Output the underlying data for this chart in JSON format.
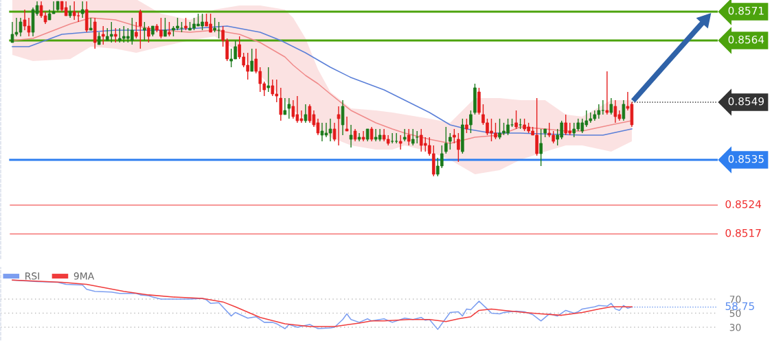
{
  "chart_data": [
    {
      "type": "candlestick",
      "categories": [
        null,
        null,
        null,
        null,
        null,
        null,
        null,
        null,
        null,
        null,
        null,
        null,
        null,
        null,
        null,
        null,
        null,
        null,
        null,
        null,
        null,
        null,
        null,
        null,
        null,
        null,
        null,
        null,
        null,
        null,
        null,
        null,
        null,
        null,
        null,
        null,
        null,
        null,
        null,
        null,
        null,
        null,
        null,
        null,
        null,
        null,
        null,
        null,
        null,
        null,
        null,
        null,
        null,
        null,
        null,
        null,
        null,
        null,
        null,
        null,
        null,
        null,
        null,
        null,
        null,
        null,
        null,
        null,
        null,
        null,
        null,
        null,
        null,
        null,
        null,
        null,
        null,
        null,
        null,
        null,
        null,
        null,
        null,
        null,
        null,
        null,
        null,
        null,
        null,
        null,
        null,
        null,
        null,
        null,
        null,
        null,
        null,
        null,
        null,
        null,
        null,
        null,
        null,
        null,
        null,
        null,
        null,
        null,
        null,
        null,
        null,
        null,
        null,
        null,
        null,
        null,
        null,
        null,
        null,
        null,
        null,
        null,
        null,
        null,
        null,
        null,
        null,
        null,
        null,
        null,
        null,
        null,
        null,
        null,
        null,
        null,
        null,
        null,
        null,
        null,
        null,
        null,
        null,
        null,
        null,
        null,
        null,
        null,
        null,
        null,
        null
      ],
      "ohlc": [
        [
          0.85635,
          0.85685,
          0.85635,
          0.85655
        ],
        [
          0.85655,
          0.85695,
          0.8565,
          0.8566
        ],
        [
          0.8566,
          0.85695,
          0.8565,
          0.85685
        ],
        [
          0.8569,
          0.85715,
          0.85665,
          0.85675
        ],
        [
          0.85675,
          0.85695,
          0.8565,
          0.8566
        ],
        [
          0.8566,
          0.8572,
          0.8565,
          0.85715
        ],
        [
          0.85705,
          0.85735,
          0.857,
          0.85725
        ],
        [
          0.85725,
          0.85735,
          0.85695,
          0.857
        ],
        [
          0.857,
          0.8571,
          0.8568,
          0.85685
        ],
        [
          0.8569,
          0.85715,
          0.8569,
          0.85705
        ],
        [
          0.85705,
          0.85735,
          0.85705,
          0.8571
        ],
        [
          0.85715,
          0.85735,
          0.8571,
          0.85735
        ],
        [
          0.85735,
          0.85735,
          0.8571,
          0.85715
        ],
        [
          0.8572,
          0.85735,
          0.857,
          0.857
        ],
        [
          0.857,
          0.85725,
          0.85695,
          0.8571
        ],
        [
          0.8571,
          0.85735,
          0.8569,
          0.857
        ],
        [
          0.857,
          0.8571,
          0.85685,
          0.857
        ],
        [
          0.85705,
          0.85735,
          0.85695,
          0.85715
        ],
        [
          0.85715,
          0.85735,
          0.8566,
          0.85665
        ],
        [
          0.85665,
          0.85695,
          0.85665,
          0.8567
        ],
        [
          0.85685,
          0.85695,
          0.8562,
          0.85635
        ],
        [
          0.8563,
          0.8566,
          0.8563,
          0.8565
        ],
        [
          0.85655,
          0.85675,
          0.8563,
          0.8565
        ],
        [
          0.8564,
          0.8567,
          0.8564,
          0.8565
        ],
        [
          0.8565,
          0.85685,
          0.85635,
          0.85655
        ],
        [
          0.85655,
          0.8567,
          0.85635,
          0.8565
        ],
        [
          0.8564,
          0.8567,
          0.85635,
          0.85645
        ],
        [
          0.85645,
          0.85675,
          0.85635,
          0.8565
        ],
        [
          0.85645,
          0.8567,
          0.85635,
          0.8565
        ],
        [
          0.8564,
          0.85695,
          0.8563,
          0.85665
        ],
        [
          0.8566,
          0.85685,
          0.85645,
          0.8565
        ],
        [
          0.8571,
          0.85715,
          0.8562,
          0.85675
        ],
        [
          0.85665,
          0.85685,
          0.8564,
          0.8567
        ],
        [
          0.8567,
          0.85675,
          0.85635,
          0.8565
        ],
        [
          0.85655,
          0.85675,
          0.8565,
          0.85675
        ],
        [
          0.85675,
          0.8568,
          0.8566,
          0.85665
        ],
        [
          0.85665,
          0.85695,
          0.85645,
          0.8565
        ],
        [
          0.8565,
          0.85695,
          0.8565,
          0.85665
        ],
        [
          0.8566,
          0.85685,
          0.8565,
          0.85655
        ],
        [
          0.85665,
          0.85675,
          0.8565,
          0.8567
        ],
        [
          0.8567,
          0.85695,
          0.85665,
          0.85675
        ],
        [
          0.8567,
          0.85685,
          0.8566,
          0.8567
        ],
        [
          0.85675,
          0.85695,
          0.85665,
          0.8567
        ],
        [
          0.85665,
          0.85685,
          0.85665,
          0.8567
        ],
        [
          0.8567,
          0.85695,
          0.85665,
          0.8568
        ],
        [
          0.85675,
          0.85705,
          0.85675,
          0.8568
        ],
        [
          0.85675,
          0.85705,
          0.85665,
          0.85685
        ],
        [
          0.85685,
          0.85705,
          0.85675,
          0.85675
        ],
        [
          0.8568,
          0.85705,
          0.8566,
          0.8566
        ],
        [
          0.85665,
          0.85695,
          0.8566,
          0.8567
        ],
        [
          0.85665,
          0.85685,
          0.85645,
          0.85665
        ],
        [
          0.85665,
          0.85675,
          0.85625,
          0.8564
        ],
        [
          0.8564,
          0.85645,
          0.8559,
          0.85595
        ],
        [
          0.8559,
          0.8562,
          0.85575,
          0.85595
        ],
        [
          0.85595,
          0.8564,
          0.85595,
          0.85625
        ],
        [
          0.8563,
          0.8565,
          0.85595,
          0.856
        ],
        [
          0.856,
          0.8561,
          0.85575,
          0.8558
        ],
        [
          0.8558,
          0.8561,
          0.85545,
          0.85565
        ],
        [
          0.85565,
          0.8562,
          0.85565,
          0.8559
        ],
        [
          0.85595,
          0.8562,
          0.8556,
          0.85565
        ],
        [
          0.85565,
          0.85575,
          0.85515,
          0.85535
        ],
        [
          0.85535,
          0.8554,
          0.85505,
          0.8552
        ],
        [
          0.85525,
          0.85575,
          0.85515,
          0.8553
        ],
        [
          0.8553,
          0.85545,
          0.85505,
          0.8551
        ],
        [
          0.8551,
          0.85545,
          0.8549,
          0.85505
        ],
        [
          0.855,
          0.85525,
          0.85445,
          0.8546
        ],
        [
          0.8546,
          0.855,
          0.8546,
          0.8547
        ],
        [
          0.85475,
          0.855,
          0.8545,
          0.85485
        ],
        [
          0.8548,
          0.85495,
          0.8545,
          0.85455
        ],
        [
          0.8546,
          0.85505,
          0.8544,
          0.85445
        ],
        [
          0.8545,
          0.8547,
          0.8544,
          0.85445
        ],
        [
          0.85445,
          0.85485,
          0.8544,
          0.8546
        ],
        [
          0.8548,
          0.85485,
          0.8544,
          0.85445
        ],
        [
          0.8546,
          0.8547,
          0.8543,
          0.85435
        ],
        [
          0.8544,
          0.8545,
          0.8541,
          0.85415
        ],
        [
          0.8541,
          0.8544,
          0.85395,
          0.8542
        ],
        [
          0.8541,
          0.8544,
          0.85405,
          0.85415
        ],
        [
          0.85415,
          0.8545,
          0.85395,
          0.85425
        ],
        [
          0.85425,
          0.8544,
          0.85395,
          0.854
        ],
        [
          0.8546,
          0.8548,
          0.85385,
          0.8545
        ],
        [
          0.85435,
          0.85495,
          0.8541,
          0.8548
        ],
        [
          0.85425,
          0.85455,
          0.8542,
          0.8542
        ],
        [
          0.854,
          0.85435,
          0.8538,
          0.8541
        ],
        [
          0.8542,
          0.85425,
          0.85395,
          0.854
        ],
        [
          0.854,
          0.85415,
          0.85395,
          0.85405
        ],
        [
          0.85405,
          0.8542,
          0.85395,
          0.854
        ],
        [
          0.854,
          0.85425,
          0.85395,
          0.85425
        ],
        [
          0.85425,
          0.8543,
          0.85395,
          0.854
        ],
        [
          0.854,
          0.85425,
          0.85395,
          0.85405
        ],
        [
          0.854,
          0.85425,
          0.85395,
          0.8541
        ],
        [
          0.8541,
          0.85425,
          0.85395,
          0.854
        ],
        [
          0.854,
          0.8541,
          0.85385,
          0.8539
        ],
        [
          0.85395,
          0.85415,
          0.8539,
          0.85395
        ],
        [
          0.85395,
          0.85415,
          0.8539,
          0.85395
        ],
        [
          0.85395,
          0.8541,
          0.85375,
          0.8539
        ],
        [
          0.854,
          0.85425,
          0.85395,
          0.85405
        ],
        [
          0.8541,
          0.85425,
          0.85385,
          0.85395
        ],
        [
          0.8539,
          0.85425,
          0.85385,
          0.854
        ],
        [
          0.85405,
          0.8542,
          0.8539,
          0.85405
        ],
        [
          0.8541,
          0.85425,
          0.8537,
          0.85385
        ],
        [
          0.8539,
          0.85405,
          0.8537,
          0.85385
        ],
        [
          0.85385,
          0.85405,
          0.8536,
          0.85365
        ],
        [
          0.85365,
          0.85385,
          0.8531,
          0.85315
        ],
        [
          0.85315,
          0.85355,
          0.8531,
          0.85335
        ],
        [
          0.85335,
          0.85385,
          0.8533,
          0.85365
        ],
        [
          0.8537,
          0.8543,
          0.85365,
          0.8539
        ],
        [
          0.85395,
          0.85415,
          0.85375,
          0.85405
        ],
        [
          0.8541,
          0.85425,
          0.8539,
          0.85405
        ],
        [
          0.854,
          0.85415,
          0.85345,
          0.85375
        ],
        [
          0.8537,
          0.8545,
          0.85365,
          0.85435
        ],
        [
          0.85435,
          0.8545,
          0.85415,
          0.85425
        ],
        [
          0.85435,
          0.8547,
          0.85415,
          0.8546
        ],
        [
          0.85465,
          0.85535,
          0.8546,
          0.85525
        ],
        [
          0.85515,
          0.85525,
          0.8546,
          0.85465
        ],
        [
          0.8546,
          0.85485,
          0.85435,
          0.8544
        ],
        [
          0.8544,
          0.8545,
          0.8541,
          0.85415
        ],
        [
          0.8542,
          0.8545,
          0.85395,
          0.85415
        ],
        [
          0.85415,
          0.8544,
          0.854,
          0.85405
        ],
        [
          0.85405,
          0.8545,
          0.854,
          0.85415
        ],
        [
          0.85415,
          0.8544,
          0.8541,
          0.8542
        ],
        [
          0.85415,
          0.8545,
          0.8541,
          0.85435
        ],
        [
          0.85435,
          0.8545,
          0.8543,
          0.85435
        ],
        [
          0.8544,
          0.8547,
          0.85425,
          0.8543
        ],
        [
          0.85435,
          0.8545,
          0.85425,
          0.85435
        ],
        [
          0.85435,
          0.8545,
          0.8542,
          0.85425
        ],
        [
          0.8543,
          0.8544,
          0.85415,
          0.8542
        ],
        [
          0.8542,
          0.8543,
          0.8541,
          0.8541
        ],
        [
          0.8541,
          0.855,
          0.8536,
          0.85365
        ],
        [
          0.85365,
          0.85425,
          0.85335,
          0.8539
        ],
        [
          0.85415,
          0.85425,
          0.85405,
          0.85425
        ],
        [
          0.85415,
          0.8544,
          0.85405,
          0.8541
        ],
        [
          0.8541,
          0.8542,
          0.8539,
          0.85395
        ],
        [
          0.854,
          0.85425,
          0.85385,
          0.8541
        ],
        [
          0.85405,
          0.85445,
          0.854,
          0.8544
        ],
        [
          0.8544,
          0.8546,
          0.8541,
          0.85415
        ],
        [
          0.8542,
          0.8544,
          0.8541,
          0.85415
        ],
        [
          0.85415,
          0.8544,
          0.85405,
          0.85425
        ],
        [
          0.85425,
          0.8545,
          0.8542,
          0.8544
        ],
        [
          0.8542,
          0.8545,
          0.85415,
          0.8544
        ],
        [
          0.85435,
          0.8547,
          0.8543,
          0.85445
        ],
        [
          0.85445,
          0.85465,
          0.8544,
          0.8545
        ],
        [
          0.8545,
          0.8547,
          0.85445,
          0.8546
        ],
        [
          0.8546,
          0.85485,
          0.8545,
          0.8547
        ],
        [
          0.8547,
          0.85495,
          0.8546,
          0.8547
        ],
        [
          0.8547,
          0.85565,
          0.8546,
          0.85465
        ],
        [
          0.85465,
          0.855,
          0.8546,
          0.85485
        ],
        [
          0.8548,
          0.85495,
          0.8544,
          0.85455
        ],
        [
          0.8546,
          0.8547,
          0.85445,
          0.8545
        ],
        [
          0.8545,
          0.85495,
          0.85445,
          0.85485
        ],
        [
          0.8548,
          0.85515,
          0.8547,
          0.85475
        ],
        [
          0.85485,
          0.8549,
          0.8543,
          0.85435
        ]
      ],
      "colors": [
        "#1b7a1b",
        "#1b7a1b",
        "#1b7a1b",
        "#e31b1b",
        "#e31b1b",
        "#1b7a1b",
        "#1b7a1b",
        "#e31b1b",
        "#e31b1b",
        "#1b7a1b",
        "#1b7a1b",
        "#1b7a1b",
        "#e31b1b",
        "#e31b1b",
        "#1b7a1b",
        "#e31b1b",
        "#e31b1b",
        "#1b7a1b",
        "#e31b1b",
        "#1b7a1b",
        "#e31b1b",
        "#1b7a1b",
        "#e31b1b",
        "#1b7a1b",
        "#1b7a1b",
        "#e31b1b",
        "#1b7a1b",
        "#1b7a1b",
        "#1b7a1b",
        "#1b7a1b",
        "#e31b1b",
        "#e31b1b",
        "#1b7a1b",
        "#e31b1b",
        "#1b7a1b",
        "#e31b1b",
        "#e31b1b",
        "#1b7a1b",
        "#e31b1b",
        "#1b7a1b",
        "#1b7a1b",
        "#1b7a1b",
        "#e31b1b",
        "#1b7a1b",
        "#1b7a1b",
        "#1b7a1b",
        "#1b7a1b",
        "#e31b1b",
        "#e31b1b",
        "#1b7a1b",
        "#1b7a1b",
        "#e31b1b",
        "#e31b1b",
        "#1b7a1b",
        "#1b7a1b",
        "#e31b1b",
        "#e31b1b",
        "#e31b1b",
        "#1b7a1b",
        "#e31b1b",
        "#e31b1b",
        "#e31b1b",
        "#1b7a1b",
        "#e31b1b",
        "#e31b1b",
        "#e31b1b",
        "#1b7a1b",
        "#1b7a1b",
        "#e31b1b",
        "#e31b1b",
        "#e31b1b",
        "#1b7a1b",
        "#e31b1b",
        "#e31b1b",
        "#e31b1b",
        "#1b7a1b",
        "#1b7a1b",
        "#1b7a1b",
        "#e31b1b",
        "#e31b1b",
        "#1b7a1b",
        "#e31b1b",
        "#1b7a1b",
        "#e31b1b",
        "#1b7a1b",
        "#e31b1b",
        "#1b7a1b",
        "#e31b1b",
        "#1b7a1b",
        "#1b7a1b",
        "#e31b1b",
        "#e31b1b",
        "#1b7a1b",
        "#1b7a1b",
        "#e31b1b",
        "#1b7a1b",
        "#e31b1b",
        "#1b7a1b",
        "#1b7a1b",
        "#e31b1b",
        "#e31b1b",
        "#e31b1b",
        "#e31b1b",
        "#1b7a1b",
        "#1b7a1b",
        "#1b7a1b",
        "#1b7a1b",
        "#e31b1b",
        "#e31b1b",
        "#1b7a1b",
        "#e31b1b",
        "#1b7a1b",
        "#1b7a1b",
        "#e31b1b",
        "#e31b1b",
        "#e31b1b",
        "#e31b1b",
        "#e31b1b",
        "#1b7a1b",
        "#1b7a1b",
        "#1b7a1b",
        "#1b7a1b",
        "#e31b1b",
        "#1b7a1b",
        "#e31b1b",
        "#e31b1b",
        "#e31b1b",
        "#e31b1b",
        "#1b7a1b",
        "#1b7a1b",
        "#e31b1b",
        "#e31b1b",
        "#1b7a1b",
        "#1b7a1b",
        "#e31b1b",
        "#e31b1b",
        "#1b7a1b",
        "#1b7a1b",
        "#1b7a1b",
        "#1b7a1b",
        "#1b7a1b",
        "#1b7a1b",
        "#1b7a1b",
        "#1b7a1b",
        "#e31b1b",
        "#1b7a1b",
        "#e31b1b",
        "#e31b1b",
        "#1b7a1b",
        "#e31b1b",
        "#e31b1b"
      ],
      "series": [
        {
          "type": "line",
          "color": "#f08a8a",
          "values": [
            0.8564,
            null,
            null,
            null,
            null,
            0.85645,
            null,
            null,
            null,
            null,
            null,
            null,
            null,
            null,
            0.8568,
            null,
            null,
            null,
            null,
            0.85695,
            null,
            null,
            null,
            null,
            null,
            0.8569,
            null,
            null,
            null,
            null,
            0.85675,
            null,
            null,
            null,
            null,
            null,
            0.85665,
            null,
            null,
            null,
            null,
            null,
            null,
            0.8566,
            null,
            null,
            null,
            null,
            null,
            0.85665,
            null,
            null,
            null,
            null,
            null,
            0.85655,
            null,
            null,
            null,
            null,
            0.85635,
            null,
            null,
            null,
            null,
            null,
            0.856,
            null,
            0.8558,
            null,
            null,
            0.85555,
            null,
            null,
            0.85535,
            null,
            null,
            0.8551,
            null,
            null,
            null,
            null,
            0.8547,
            null,
            null,
            null,
            null,
            null,
            0.8544,
            null,
            null,
            null,
            0.85425,
            null,
            null,
            0.85415,
            null,
            null,
            null,
            null,
            null,
            0.854,
            null,
            null,
            null,
            null,
            0.8539,
            null,
            null,
            null,
            null,
            null,
            0.85405,
            null,
            null,
            null,
            null,
            null,
            0.8541,
            null,
            null,
            null,
            null,
            0.8543,
            null,
            null,
            null,
            null,
            null,
            0.85425,
            null,
            null,
            null,
            null,
            0.8542,
            null,
            null,
            null,
            0.8542,
            null,
            null,
            null,
            null,
            null,
            null,
            0.85435,
            null,
            null,
            null,
            null,
            0.85445
          ],
          "upper": [
            0.8574,
            null,
            null,
            null,
            null,
            0.8574,
            null,
            null,
            null,
            null,
            null,
            null,
            null,
            null,
            0.8574,
            null,
            null,
            null,
            null,
            0.8574,
            null,
            null,
            null,
            null,
            null,
            0.8574,
            null,
            null,
            null,
            null,
            0.8574,
            null,
            null,
            null,
            null,
            null,
            0.85705,
            null,
            null,
            null,
            null,
            null,
            null,
            0.8569,
            null,
            null,
            null,
            null,
            null,
            0.85715,
            null,
            null,
            null,
            null,
            null,
            0.85725,
            null,
            null,
            null,
            null,
            0.85725,
            null,
            null,
            null,
            null,
            null,
            0.85715,
            null,
            0.85695,
            null,
            null,
            0.85645,
            null,
            null,
            0.8557,
            null,
            null,
            0.85515,
            null,
            null,
            null,
            null,
            0.85475,
            null,
            null,
            null,
            null,
            null,
            0.8547,
            null,
            null,
            null,
            0.85465,
            null,
            null,
            0.8546,
            null,
            null,
            null,
            null,
            null,
            0.8545,
            null,
            null,
            null,
            null,
            0.8544,
            null,
            null,
            null,
            null,
            null,
            0.855,
            null,
            null,
            null,
            null,
            null,
            0.855,
            null,
            null,
            null,
            null,
            0.85495,
            null,
            null,
            null,
            null,
            null,
            0.85495,
            null,
            null,
            null,
            null,
            0.8546,
            null,
            null,
            null,
            0.85455,
            null,
            null,
            null,
            null,
            null,
            null,
            0.85495,
            null,
            null,
            null,
            null,
            0.85495
          ],
          "lower": [
            0.85605,
            null,
            null,
            null,
            null,
            0.8559,
            null,
            null,
            null,
            null,
            null,
            null,
            null,
            null,
            0.85595,
            null,
            null,
            null,
            null,
            0.85625,
            null,
            null,
            null,
            null,
            null,
            0.8562,
            null,
            null,
            null,
            null,
            0.8561,
            null,
            null,
            null,
            null,
            null,
            0.85625,
            null,
            null,
            null,
            null,
            null,
            null,
            0.8564,
            null,
            null,
            null,
            null,
            null,
            0.8565,
            null,
            null,
            null,
            null,
            null,
            0.8561,
            null,
            null,
            null,
            null,
            0.85555,
            null,
            null,
            null,
            null,
            null,
            0.85495,
            null,
            0.8547,
            null,
            null,
            0.8545,
            null,
            null,
            0.85425,
            null,
            null,
            0.85405,
            null,
            null,
            null,
            null,
            0.85385,
            null,
            null,
            null,
            null,
            null,
            0.85375,
            null,
            null,
            null,
            0.85375,
            null,
            null,
            0.85385,
            null,
            null,
            null,
            null,
            null,
            0.8537,
            null,
            null,
            null,
            null,
            0.8535,
            null,
            null,
            null,
            null,
            null,
            0.85315,
            null,
            null,
            null,
            null,
            null,
            0.85325,
            null,
            null,
            null,
            null,
            0.8535,
            null,
            null,
            null,
            null,
            null,
            0.8537,
            null,
            null,
            null,
            null,
            0.85385,
            null,
            null,
            null,
            0.85385,
            null,
            null,
            null,
            null,
            null,
            null,
            0.8537,
            null,
            null,
            null,
            null,
            0.85395
          ]
        },
        {
          "type": "line",
          "color": "#5a7fd8",
          "values": [
            0.85625,
            null,
            null,
            null,
            0.85625,
            null,
            null,
            null,
            0.8564,
            null,
            null,
            null,
            0.85655,
            null,
            null,
            null,
            null,
            null,
            0.8566,
            null,
            null,
            null,
            null,
            null,
            null,
            0.85665,
            null,
            null,
            null,
            null,
            null,
            null,
            null,
            null,
            null,
            null,
            0.85665,
            null,
            null,
            null,
            null,
            null,
            null,
            null,
            null,
            0.8567,
            null,
            null,
            null,
            null,
            null,
            null,
            0.85675,
            null,
            null,
            null,
            null,
            null,
            null,
            null,
            0.8566,
            null,
            null,
            null,
            null,
            0.8564,
            null,
            null,
            null,
            null,
            null,
            0.8561,
            null,
            null,
            null,
            null,
            null,
            0.85575,
            null,
            null,
            null,
            null,
            0.8555,
            null,
            null,
            null,
            null,
            null,
            null,
            null,
            0.8552,
            null,
            null,
            null,
            null,
            0.85495,
            null,
            null,
            null,
            null,
            null,
            0.85465,
            null,
            null,
            null,
            null,
            0.85435,
            null,
            null,
            null,
            0.85425,
            null,
            null,
            null,
            null,
            null,
            0.85415,
            null,
            null,
            null,
            null,
            null,
            null,
            0.85415,
            null,
            null,
            null,
            null,
            null,
            null,
            null,
            null,
            null,
            null,
            null,
            null,
            null,
            null,
            0.8541,
            null,
            null,
            null,
            null,
            0.8541,
            null,
            null,
            null,
            null,
            null,
            null,
            0.85425
          ]
        }
      ],
      "ref_lines": [
        {
          "axis": "y",
          "value": 0.8571,
          "label": "0.8571",
          "color": "#4ca30d",
          "line_style": "solid"
        },
        {
          "axis": "y",
          "value": 0.8564,
          "label": "0.8564",
          "color": "#4ca30d",
          "line_style": "solid"
        },
        {
          "axis": "y",
          "value": 0.8549,
          "label": "0.8549",
          "color": "#333333",
          "line_style": "dotted"
        },
        {
          "axis": "y",
          "value": 0.8535,
          "label": "0.8535",
          "color": "#2f7ff0",
          "line_style": "solid"
        },
        {
          "axis": "y",
          "value": 0.8524,
          "label": "0.8524",
          "color": "#f03030",
          "line_style": "solid"
        },
        {
          "axis": "y",
          "value": 0.8517,
          "label": "0.8517",
          "color": "#f03030",
          "line_style": "solid"
        }
      ],
      "ylim": [
        0.8511,
        0.8574
      ],
      "tick_labels": false
    },
    {
      "type": "line",
      "categories": [
        null,
        null,
        null,
        null,
        null,
        null,
        null,
        null,
        null,
        null,
        null,
        null,
        null,
        null,
        null,
        null,
        null,
        null,
        null,
        null,
        null,
        null,
        null,
        null,
        null,
        null,
        null,
        null,
        null,
        null,
        null,
        null,
        null,
        null,
        null,
        null,
        null,
        null,
        null,
        null,
        null,
        null,
        null,
        null,
        null,
        null,
        null,
        null,
        null,
        null,
        null,
        null,
        null,
        null,
        null,
        null,
        null,
        null,
        null,
        null,
        null,
        null,
        null,
        null,
        null,
        null,
        null,
        null,
        null,
        null,
        null,
        null,
        null,
        null,
        null,
        null,
        null,
        null,
        null,
        null,
        null,
        null,
        null,
        null,
        null,
        null,
        null,
        null,
        null,
        null,
        null,
        null,
        null,
        null,
        null,
        null,
        null,
        null,
        null,
        null,
        null,
        null,
        null,
        null,
        null,
        null,
        null,
        null,
        null,
        null,
        null,
        null,
        null,
        null,
        null,
        null,
        null,
        null,
        null,
        null,
        null,
        null,
        null,
        null,
        null,
        null,
        null,
        null,
        null,
        null,
        null,
        null,
        null,
        null,
        null,
        null,
        null,
        null,
        null,
        null,
        null,
        null,
        null,
        null,
        null,
        null,
        null,
        null,
        null,
        null,
        null
      ],
      "series": [
        {
          "name": "RSI",
          "color": "#7c9ef0",
          "values": [
            97,
            null,
            null,
            null,
            null,
            null,
            95,
            null,
            null,
            null,
            null,
            94,
            null,
            91,
            null,
            null,
            null,
            90,
            84,
            null,
            81,
            null,
            null,
            null,
            80,
            null,
            78,
            null,
            null,
            null,
            78,
            76,
            null,
            75,
            73,
            null,
            70,
            null,
            null,
            70,
            null,
            null,
            null,
            70,
            null,
            null,
            71,
            69,
            64,
            null,
            65,
            null,
            null,
            46,
            51,
            null,
            null,
            43,
            null,
            45,
            null,
            37,
            null,
            37,
            35,
            null,
            28,
            34,
            null,
            30,
            null,
            null,
            34,
            null,
            28,
            null,
            null,
            29,
            30,
            null,
            41,
            49,
            41,
            null,
            37,
            null,
            42,
            39,
            null,
            null,
            42,
            null,
            37,
            null,
            null,
            43,
            null,
            41,
            null,
            44,
            40,
            41,
            null,
            27,
            null,
            43,
            51,
            null,
            52,
            46,
            56,
            55,
            null,
            67,
            null,
            56,
            50,
            null,
            49,
            51,
            null,
            null,
            53,
            null,
            52,
            null,
            48,
            null,
            39,
            null,
            49,
            null,
            46,
            null,
            54,
            null,
            50,
            52,
            56,
            null,
            null,
            59,
            61,
            null,
            60,
            64,
            56,
            54,
            61,
            57,
            58.75
          ]
        },
        {
          "name": "9MA",
          "color": "#f03c3c",
          "values": [
            97,
            null,
            null,
            null,
            null,
            null,
            null,
            null,
            null,
            null,
            null,
            null,
            94,
            null,
            null,
            null,
            null,
            null,
            91,
            null,
            null,
            null,
            null,
            null,
            null,
            null,
            null,
            81,
            null,
            null,
            null,
            null,
            null,
            76,
            null,
            null,
            null,
            null,
            null,
            73,
            null,
            null,
            null,
            null,
            null,
            null,
            71,
            null,
            null,
            null,
            null,
            66,
            null,
            null,
            59,
            null,
            null,
            null,
            null,
            null,
            44,
            null,
            null,
            null,
            null,
            null,
            35,
            null,
            null,
            null,
            null,
            null,
            31,
            null,
            null,
            null,
            null,
            null,
            31,
            null,
            null,
            null,
            null,
            null,
            36,
            null,
            null,
            39,
            null,
            null,
            39,
            null,
            null,
            null,
            null,
            null,
            41,
            null,
            null,
            null,
            null,
            41,
            null,
            null,
            null,
            38,
            null,
            null,
            42,
            null,
            null,
            45,
            null,
            54,
            null,
            null,
            56,
            null,
            null,
            54,
            null,
            null,
            null,
            null,
            51,
            null,
            null,
            null,
            49,
            null,
            null,
            null,
            null,
            47,
            null,
            null,
            null,
            null,
            51,
            null,
            null,
            null,
            56,
            null,
            null,
            59,
            null,
            null,
            null,
            null,
            59
          ]
        }
      ],
      "ref_lines": [
        {
          "axis": "y",
          "value": 58.75,
          "label": "58.75",
          "color": "#5b8def",
          "line_style": "dotted"
        }
      ],
      "ylim": [
        12,
        115
      ],
      "yticks": [
        30,
        50,
        70
      ],
      "grid": "y",
      "legend": "top left",
      "tick_labels": "y"
    }
  ]
}
